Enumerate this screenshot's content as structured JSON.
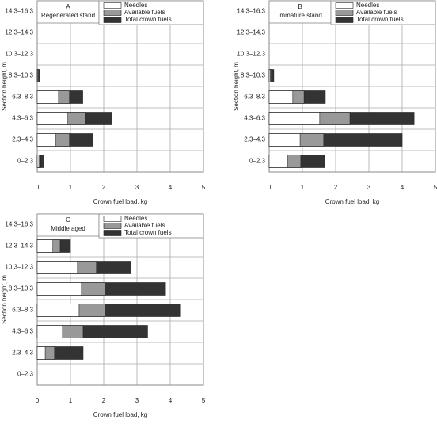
{
  "chart_data": [
    {
      "type": "bar",
      "orientation": "horizontal",
      "panel": "A",
      "title": "Regenerated stand",
      "categories": [
        "0–2.3",
        "2.3–4.3",
        "4.3–6.3",
        "6.3–8.3",
        "8.3–10.3",
        "10.3–12.3",
        "12.3–14.3",
        "14.3–16.3"
      ],
      "series": [
        {
          "name": "Needles",
          "color": "#ffffff",
          "values": [
            0.05,
            0.55,
            0.92,
            0.64,
            0.02,
            0,
            0,
            0
          ]
        },
        {
          "name": "Available fuels",
          "color": "#999999",
          "values": [
            0.1,
            0.97,
            1.45,
            0.97,
            0.04,
            0,
            0,
            0
          ]
        },
        {
          "name": "Total crown fuels",
          "color": "#333333",
          "values": [
            0.2,
            1.68,
            2.25,
            1.37,
            0.08,
            0,
            0,
            0
          ]
        }
      ],
      "xlabel": "Crown fuel load, kg",
      "ylabel": "Section height, m",
      "xlim": [
        0,
        5
      ],
      "xticks": [
        0,
        1,
        2,
        3,
        4,
        5
      ],
      "grid": true
    },
    {
      "type": "bar",
      "orientation": "horizontal",
      "panel": "B",
      "title": "Immature stand",
      "categories": [
        "0–2.3",
        "2.3–4.3",
        "4.3–6.3",
        "6.3–8.3",
        "8.3–10.3",
        "10.3–12.3",
        "12.3–14.3",
        "14.3–16.3"
      ],
      "series": [
        {
          "name": "Needles",
          "color": "#ffffff",
          "values": [
            0.55,
            0.93,
            1.52,
            0.71,
            0.03,
            0,
            0,
            0
          ]
        },
        {
          "name": "Available fuels",
          "color": "#999999",
          "values": [
            0.95,
            1.64,
            2.43,
            1.05,
            0.06,
            0,
            0,
            0
          ]
        },
        {
          "name": "Total crown fuels",
          "color": "#333333",
          "values": [
            1.67,
            4.0,
            4.36,
            1.69,
            0.14,
            0,
            0,
            0
          ]
        }
      ],
      "xlabel": "Crown fuel load, kg",
      "ylabel": "Section height, m",
      "xlim": [
        0,
        5
      ],
      "xticks": [
        0,
        1,
        2,
        3,
        4,
        5
      ],
      "grid": true
    },
    {
      "type": "bar",
      "orientation": "horizontal",
      "panel": "C",
      "title": "Middle aged",
      "categories": [
        "0–2.3",
        "2.3–4.3",
        "4.3–6.3",
        "6.3–8.3",
        "8.3–10.3",
        "10.3–12.3",
        "12.3–14.3",
        "14.3–16.3"
      ],
      "series": [
        {
          "name": "Needles",
          "color": "#ffffff",
          "values": [
            0,
            0.24,
            0.76,
            1.26,
            1.33,
            1.21,
            0.47,
            0.05
          ]
        },
        {
          "name": "Available fuels",
          "color": "#999999",
          "values": [
            0,
            0.52,
            1.38,
            2.04,
            2.04,
            1.78,
            0.69,
            0.08
          ]
        },
        {
          "name": "Total crown fuels",
          "color": "#333333",
          "values": [
            0,
            1.38,
            3.32,
            4.29,
            3.86,
            2.82,
            1.0,
            0.14
          ]
        }
      ],
      "xlabel": "Crown fuel load, kg",
      "ylabel": "Section height, m",
      "xlim": [
        0,
        5
      ],
      "xticks": [
        0,
        1,
        2,
        3,
        4,
        5
      ],
      "grid": true
    }
  ]
}
